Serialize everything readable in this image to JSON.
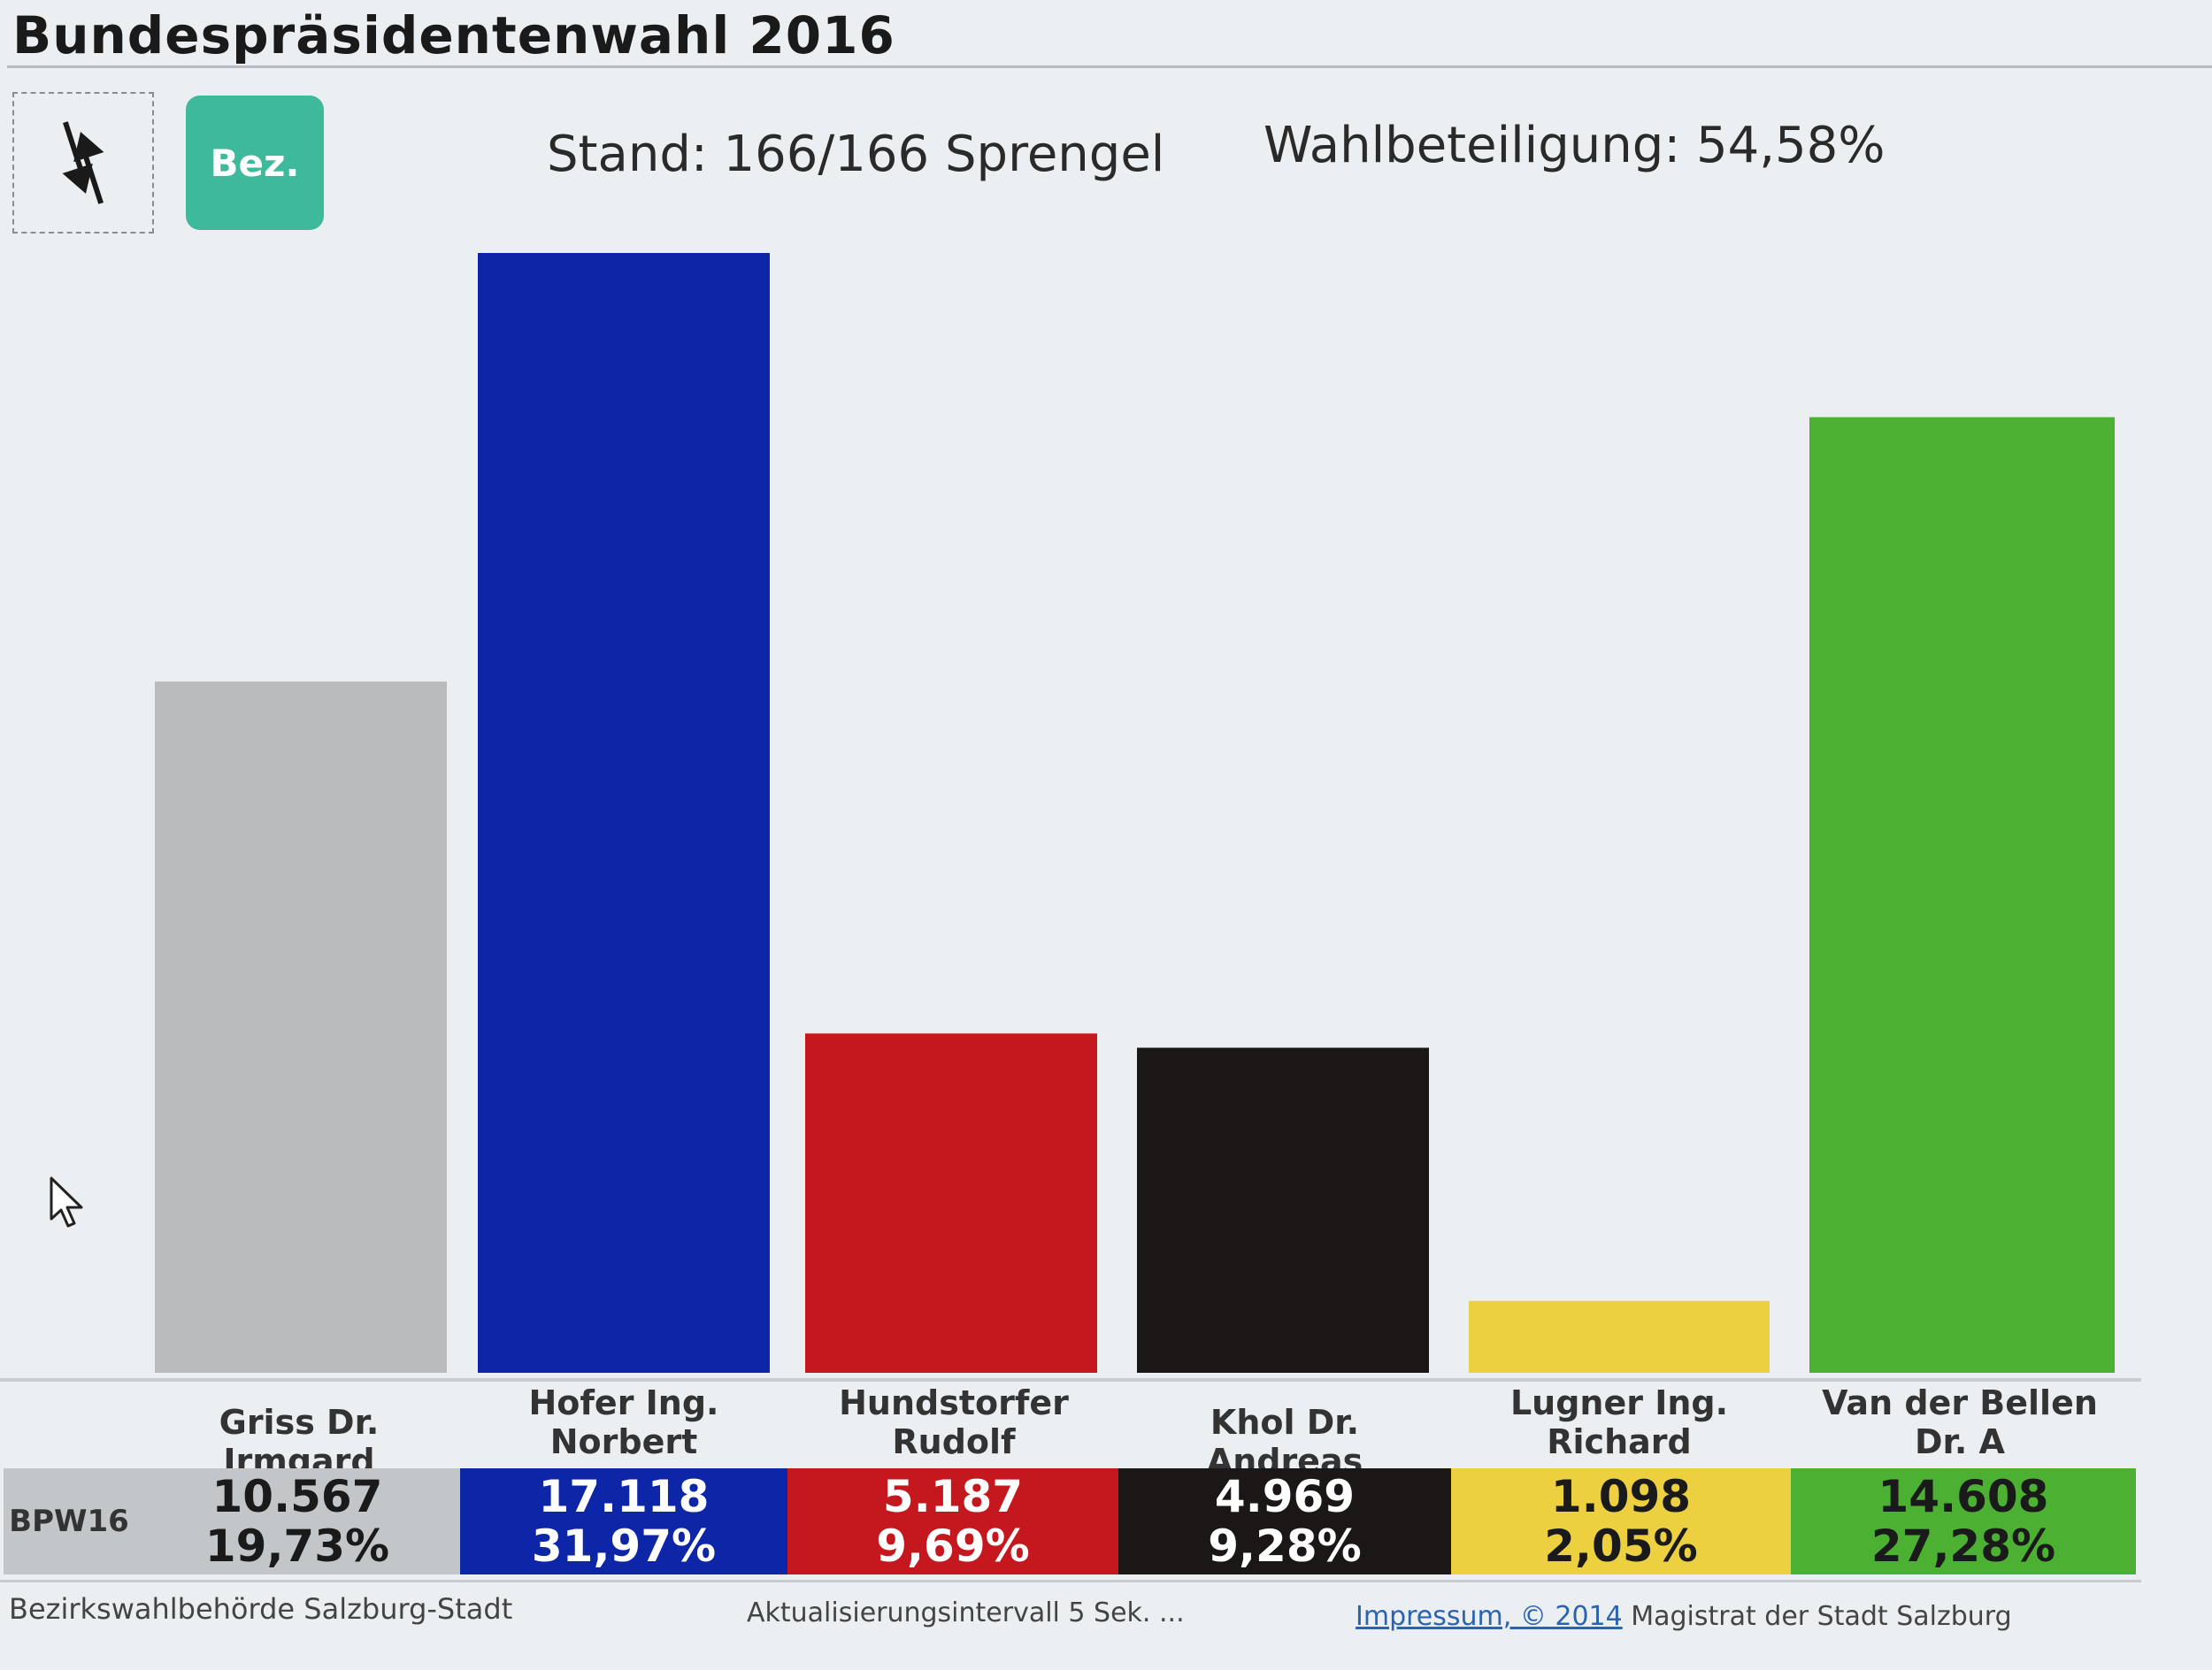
{
  "header": {
    "title": "Bundespräsidentenwahl 2016",
    "bez_button": "Bez.",
    "status": "Stand: 166/166 Sprengel",
    "turnout": "Wahlbeteiligung: 54,58%"
  },
  "row_label": "BPW16",
  "chart_data": {
    "type": "bar",
    "title": "Bundespräsidentenwahl 2016",
    "categories": [
      "Griss Dr. Irmgard",
      "Hofer Ing. Norbert",
      "Hundstorfer Rudolf",
      "Khol Dr. Andreas",
      "Lugner Ing. Richard",
      "Van der Bellen Dr. A"
    ],
    "label_lines": [
      [
        "Griss Dr. Irmgard"
      ],
      [
        "Hofer Ing.",
        "Norbert"
      ],
      [
        "Hundstorfer",
        "Rudolf"
      ],
      [
        "Khol Dr. Andreas"
      ],
      [
        "Lugner Ing.",
        "Richard"
      ],
      [
        "Van der Bellen",
        "Dr. A"
      ]
    ],
    "values": [
      10567,
      17118,
      5187,
      4969,
      1098,
      14608
    ],
    "value_labels": [
      "10.567",
      "17.118",
      "5.187",
      "4.969",
      "1.098",
      "14.608"
    ],
    "percent_labels": [
      "19,73%",
      "31,97%",
      "9,69%",
      "9,28%",
      "2,05%",
      "27,28%"
    ],
    "colors": [
      "#b8babc",
      "#0d26a8",
      "#c4171e",
      "#1b1717",
      "#ecd040",
      "#4cb032"
    ],
    "cell_text_colors": [
      "#1a1a1a",
      "#ffffff",
      "#ffffff",
      "#ffffff",
      "#1a1a1a",
      "#1a1a1a"
    ],
    "cell_colors": [
      "#c3c6c9",
      "#0d26a8",
      "#c4171e",
      "#1b1717",
      "#ecd040",
      "#4cb032"
    ],
    "ylim": [
      0,
      17118
    ],
    "grid": false,
    "legend": "none"
  },
  "footer": {
    "left": "Bezirkswahlbehörde Salzburg-Stadt",
    "middle": "Aktualisierungsintervall 5 Sek.   ...",
    "impressum_link": "Impressum, © 2014",
    "right": " Magistrat der Stadt Salzburg"
  }
}
